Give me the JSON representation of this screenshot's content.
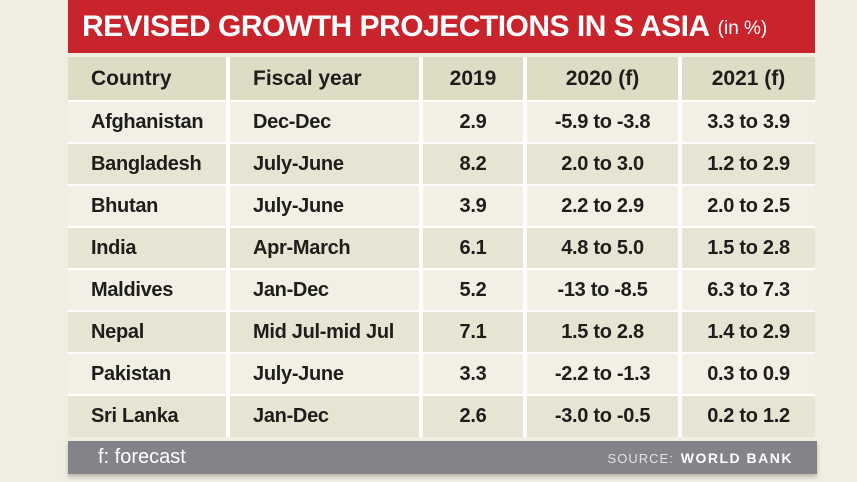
{
  "title": {
    "text": "REVISED GROWTH PROJECTIONS IN S ASIA",
    "suffix": "(in %)"
  },
  "chart_data": {
    "type": "table",
    "title": "REVISED GROWTH PROJECTIONS IN S ASIA (in %)",
    "columns": [
      "Country",
      "Fiscal year",
      "2019",
      "2020 (f)",
      "2021 (f)"
    ],
    "rows": [
      [
        "Afghanistan",
        "Dec-Dec",
        "2.9",
        "-5.9 to -3.8",
        "3.3 to 3.9"
      ],
      [
        "Bangladesh",
        "July-June",
        "8.2",
        "2.0 to 3.0",
        "1.2 to 2.9"
      ],
      [
        "Bhutan",
        "July-June",
        "3.9",
        "2.2 to 2.9",
        "2.0 to 2.5"
      ],
      [
        "India",
        "Apr-March",
        "6.1",
        "4.8 to 5.0",
        "1.5 to 2.8"
      ],
      [
        "Maldives",
        "Jan-Dec",
        "5.2",
        "-13 to -8.5",
        "6.3 to 7.3"
      ],
      [
        "Nepal",
        "Mid Jul-mid Jul",
        "7.1",
        "1.5 to 2.8",
        "1.4 to 2.9"
      ],
      [
        "Pakistan",
        "July-June",
        "3.3",
        "-2.2 to -1.3",
        "0.3 to 0.9"
      ],
      [
        "Sri Lanka",
        "Jan-Dec",
        "2.6",
        "-3.0 to -0.5",
        "0.2 to 1.2"
      ]
    ]
  },
  "footer": {
    "note": "f: forecast",
    "source_label": "SOURCE:",
    "source_value": "WORLD BANK"
  },
  "colors": {
    "red": "#c9232b",
    "bg": "#f0ede1",
    "header-bg": "#dfdcc5",
    "row-light": "#f2f0e5",
    "row-dark": "#e7e4d3",
    "footer-bg": "#82848a",
    "ink": "#1d1d1b"
  }
}
